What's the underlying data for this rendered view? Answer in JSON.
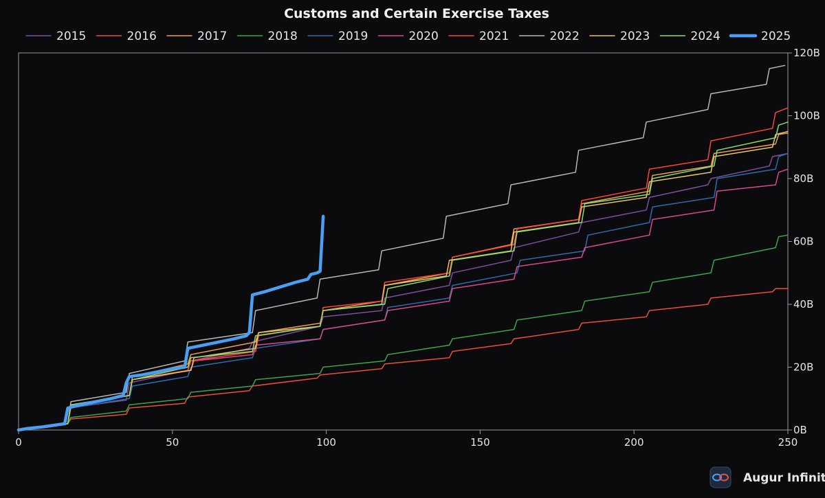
{
  "chart_data": {
    "type": "line",
    "title": "Customs and Certain Exercise Taxes",
    "xlabel": "",
    "ylabel": "",
    "xlim": [
      0,
      250
    ],
    "ylim": [
      0,
      120
    ],
    "x_ticks": [
      "0",
      "50",
      "100",
      "150",
      "200",
      "250"
    ],
    "y_ticks": [
      "0B",
      "20B",
      "40B",
      "60B",
      "80B",
      "100B",
      "120B"
    ],
    "y_unit": "B",
    "y_axis_side": "right",
    "legend_position": "top",
    "grid": false,
    "series": [
      {
        "name": "2015",
        "color": "#7b4fa0",
        "width": 1.5,
        "points": [
          [
            0,
            0
          ],
          [
            15,
            2
          ],
          [
            16,
            7
          ],
          [
            35,
            9.5
          ],
          [
            36,
            15
          ],
          [
            55,
            19
          ],
          [
            56,
            22
          ],
          [
            75,
            26
          ],
          [
            76,
            28
          ],
          [
            98,
            33
          ],
          [
            99,
            36
          ],
          [
            118,
            38
          ],
          [
            119,
            42
          ],
          [
            140,
            46
          ],
          [
            141,
            50
          ],
          [
            160,
            54
          ],
          [
            161,
            58
          ],
          [
            182,
            63
          ],
          [
            183,
            66
          ],
          [
            204,
            70
          ],
          [
            205,
            74
          ],
          [
            224,
            78
          ],
          [
            225,
            80
          ],
          [
            244,
            84
          ],
          [
            245,
            87
          ],
          [
            250,
            88
          ]
        ]
      },
      {
        "name": "2016",
        "color": "#e8503c",
        "width": 1.5,
        "points": [
          [
            0,
            0
          ],
          [
            16,
            2
          ],
          [
            17,
            3.5
          ],
          [
            35,
            5
          ],
          [
            36,
            7
          ],
          [
            54,
            8.5
          ],
          [
            55,
            10.5
          ],
          [
            75,
            12.5
          ],
          [
            76,
            14
          ],
          [
            97,
            16.5
          ],
          [
            98,
            17.5
          ],
          [
            118,
            19.5
          ],
          [
            119,
            21
          ],
          [
            140,
            23
          ],
          [
            141,
            25
          ],
          [
            160,
            27.5
          ],
          [
            161,
            29
          ],
          [
            182,
            32
          ],
          [
            183,
            34
          ],
          [
            204,
            36
          ],
          [
            205,
            38
          ],
          [
            224,
            40
          ],
          [
            225,
            42
          ],
          [
            245,
            44
          ],
          [
            246,
            45
          ],
          [
            250,
            45
          ]
        ]
      },
      {
        "name": "2017",
        "color": "#f0a050",
        "width": 1.5,
        "points": [
          [
            0,
            0
          ],
          [
            16,
            2
          ],
          [
            17,
            8
          ],
          [
            36,
            11
          ],
          [
            37,
            17
          ],
          [
            55,
            21
          ],
          [
            56,
            24
          ],
          [
            77,
            28
          ],
          [
            78,
            31
          ],
          [
            98,
            34
          ],
          [
            99,
            38
          ],
          [
            118,
            41
          ],
          [
            119,
            46
          ],
          [
            140,
            50
          ],
          [
            141,
            55
          ],
          [
            160,
            59
          ],
          [
            161,
            64
          ],
          [
            182,
            67
          ],
          [
            183,
            72
          ],
          [
            205,
            76
          ],
          [
            206,
            81
          ],
          [
            225,
            84
          ],
          [
            226,
            88
          ],
          [
            246,
            91
          ],
          [
            247,
            94
          ],
          [
            250,
            94.5
          ]
        ]
      },
      {
        "name": "2018",
        "color": "#3fa34d",
        "width": 1.5,
        "points": [
          [
            0,
            0
          ],
          [
            16,
            2
          ],
          [
            17,
            4
          ],
          [
            35,
            6
          ],
          [
            36,
            8
          ],
          [
            55,
            10
          ],
          [
            56,
            12
          ],
          [
            76,
            14
          ],
          [
            77,
            16
          ],
          [
            98,
            18
          ],
          [
            99,
            20
          ],
          [
            119,
            22
          ],
          [
            120,
            24
          ],
          [
            140,
            27
          ],
          [
            141,
            29
          ],
          [
            161,
            32
          ],
          [
            162,
            35
          ],
          [
            183,
            38
          ],
          [
            184,
            41
          ],
          [
            205,
            44
          ],
          [
            206,
            47
          ],
          [
            225,
            50
          ],
          [
            226,
            54
          ],
          [
            246,
            58
          ],
          [
            247,
            61.5
          ],
          [
            250,
            62
          ]
        ]
      },
      {
        "name": "2019",
        "color": "#2f6bb0",
        "width": 1.5,
        "points": [
          [
            0,
            0
          ],
          [
            16,
            2
          ],
          [
            17,
            7
          ],
          [
            36,
            10
          ],
          [
            37,
            14
          ],
          [
            55,
            17
          ],
          [
            56,
            20
          ],
          [
            76,
            23
          ],
          [
            77,
            26
          ],
          [
            98,
            29
          ],
          [
            99,
            32
          ],
          [
            119,
            35
          ],
          [
            120,
            39
          ],
          [
            140,
            42
          ],
          [
            141,
            46
          ],
          [
            162,
            50
          ],
          [
            163,
            54
          ],
          [
            184,
            57
          ],
          [
            185,
            62
          ],
          [
            205,
            66
          ],
          [
            206,
            71
          ],
          [
            226,
            74
          ],
          [
            227,
            80
          ],
          [
            246,
            83
          ],
          [
            247,
            87
          ],
          [
            250,
            88
          ]
        ]
      },
      {
        "name": "2020",
        "color": "#d94a8c",
        "width": 1.5,
        "points": [
          [
            0,
            0
          ],
          [
            16,
            2
          ],
          [
            17,
            7
          ],
          [
            36,
            11
          ],
          [
            37,
            16
          ],
          [
            56,
            19
          ],
          [
            57,
            22
          ],
          [
            76,
            24
          ],
          [
            77,
            27
          ],
          [
            98,
            29
          ],
          [
            99,
            32
          ],
          [
            119,
            35
          ],
          [
            120,
            38
          ],
          [
            140,
            41
          ],
          [
            141,
            45
          ],
          [
            161,
            48
          ],
          [
            162,
            52
          ],
          [
            183,
            55
          ],
          [
            184,
            58
          ],
          [
            205,
            62
          ],
          [
            206,
            67
          ],
          [
            226,
            70
          ],
          [
            227,
            76
          ],
          [
            246,
            78
          ],
          [
            247,
            82
          ],
          [
            250,
            83
          ]
        ]
      },
      {
        "name": "2021",
        "color": "#ff4433",
        "width": 1.5,
        "points": [
          [
            0,
            0
          ],
          [
            16,
            2
          ],
          [
            17,
            8
          ],
          [
            36,
            11
          ],
          [
            37,
            16
          ],
          [
            55,
            19
          ],
          [
            56,
            22
          ],
          [
            77,
            25
          ],
          [
            78,
            30
          ],
          [
            98,
            33
          ],
          [
            99,
            39
          ],
          [
            118,
            41
          ],
          [
            119,
            47
          ],
          [
            140,
            50
          ],
          [
            141,
            55
          ],
          [
            161,
            59
          ],
          [
            162,
            64
          ],
          [
            182,
            67
          ],
          [
            183,
            73
          ],
          [
            204,
            77
          ],
          [
            205,
            83
          ],
          [
            224,
            86
          ],
          [
            225,
            92
          ],
          [
            245,
            96
          ],
          [
            246,
            101
          ],
          [
            250,
            102.5
          ]
        ]
      },
      {
        "name": "2022",
        "color": "#b8b8b8",
        "width": 1.5,
        "points": [
          [
            0,
            0
          ],
          [
            16,
            2
          ],
          [
            17,
            9
          ],
          [
            35,
            12
          ],
          [
            36,
            18
          ],
          [
            54,
            22
          ],
          [
            55,
            28
          ],
          [
            76,
            31
          ],
          [
            77,
            38
          ],
          [
            97,
            42
          ],
          [
            98,
            48
          ],
          [
            117,
            51
          ],
          [
            118,
            57
          ],
          [
            138,
            61
          ],
          [
            139,
            68
          ],
          [
            159,
            72
          ],
          [
            160,
            78
          ],
          [
            181,
            82
          ],
          [
            182,
            89
          ],
          [
            203,
            93
          ],
          [
            204,
            98
          ],
          [
            224,
            102
          ],
          [
            225,
            107
          ],
          [
            243,
            110
          ],
          [
            244,
            115
          ],
          [
            249,
            116
          ]
        ]
      },
      {
        "name": "2023",
        "color": "#e8c46a",
        "width": 1.5,
        "points": [
          [
            0,
            0
          ],
          [
            16,
            2
          ],
          [
            17,
            8
          ],
          [
            36,
            11
          ],
          [
            37,
            16
          ],
          [
            56,
            19
          ],
          [
            57,
            23
          ],
          [
            77,
            26
          ],
          [
            78,
            31
          ],
          [
            98,
            33
          ],
          [
            99,
            38
          ],
          [
            118,
            40
          ],
          [
            119,
            46
          ],
          [
            139,
            49
          ],
          [
            140,
            54
          ],
          [
            160,
            57
          ],
          [
            161,
            63
          ],
          [
            182,
            66
          ],
          [
            183,
            71
          ],
          [
            204,
            74
          ],
          [
            205,
            79
          ],
          [
            225,
            82
          ],
          [
            226,
            87
          ],
          [
            245,
            90
          ],
          [
            246,
            94
          ],
          [
            250,
            95
          ]
        ]
      },
      {
        "name": "2024",
        "color": "#8fdc6e",
        "width": 1.5,
        "points": [
          [
            0,
            0
          ],
          [
            16,
            2
          ],
          [
            17,
            8
          ],
          [
            36,
            11
          ],
          [
            37,
            16
          ],
          [
            55,
            20
          ],
          [
            56,
            23
          ],
          [
            76,
            25
          ],
          [
            77,
            30
          ],
          [
            98,
            33
          ],
          [
            99,
            38
          ],
          [
            119,
            40
          ],
          [
            120,
            45
          ],
          [
            140,
            49
          ],
          [
            141,
            54
          ],
          [
            161,
            57
          ],
          [
            162,
            63
          ],
          [
            183,
            66
          ],
          [
            184,
            72
          ],
          [
            205,
            75
          ],
          [
            206,
            80
          ],
          [
            226,
            84
          ],
          [
            227,
            89
          ],
          [
            246,
            93
          ],
          [
            247,
            97
          ],
          [
            250,
            98
          ]
        ]
      },
      {
        "name": "2025",
        "color": "#4a9ff0",
        "width": 4.5,
        "points": [
          [
            0,
            0
          ],
          [
            3,
            0.5
          ],
          [
            8,
            1
          ],
          [
            15,
            2
          ],
          [
            16,
            7
          ],
          [
            20,
            8
          ],
          [
            25,
            9
          ],
          [
            30,
            10
          ],
          [
            34,
            11
          ],
          [
            35,
            15
          ],
          [
            36,
            17
          ],
          [
            40,
            17.5
          ],
          [
            45,
            18.5
          ],
          [
            50,
            19.5
          ],
          [
            54,
            20
          ],
          [
            55,
            26
          ],
          [
            60,
            27
          ],
          [
            65,
            28
          ],
          [
            70,
            29
          ],
          [
            74,
            30
          ],
          [
            75,
            31
          ],
          [
            76,
            43
          ],
          [
            80,
            44
          ],
          [
            85,
            45.5
          ],
          [
            90,
            47
          ],
          [
            94,
            48
          ],
          [
            95,
            49.5
          ],
          [
            97,
            50
          ],
          [
            98,
            50.5
          ],
          [
            99,
            68
          ]
        ]
      }
    ]
  },
  "brand": {
    "name": "Augur Infinity"
  }
}
